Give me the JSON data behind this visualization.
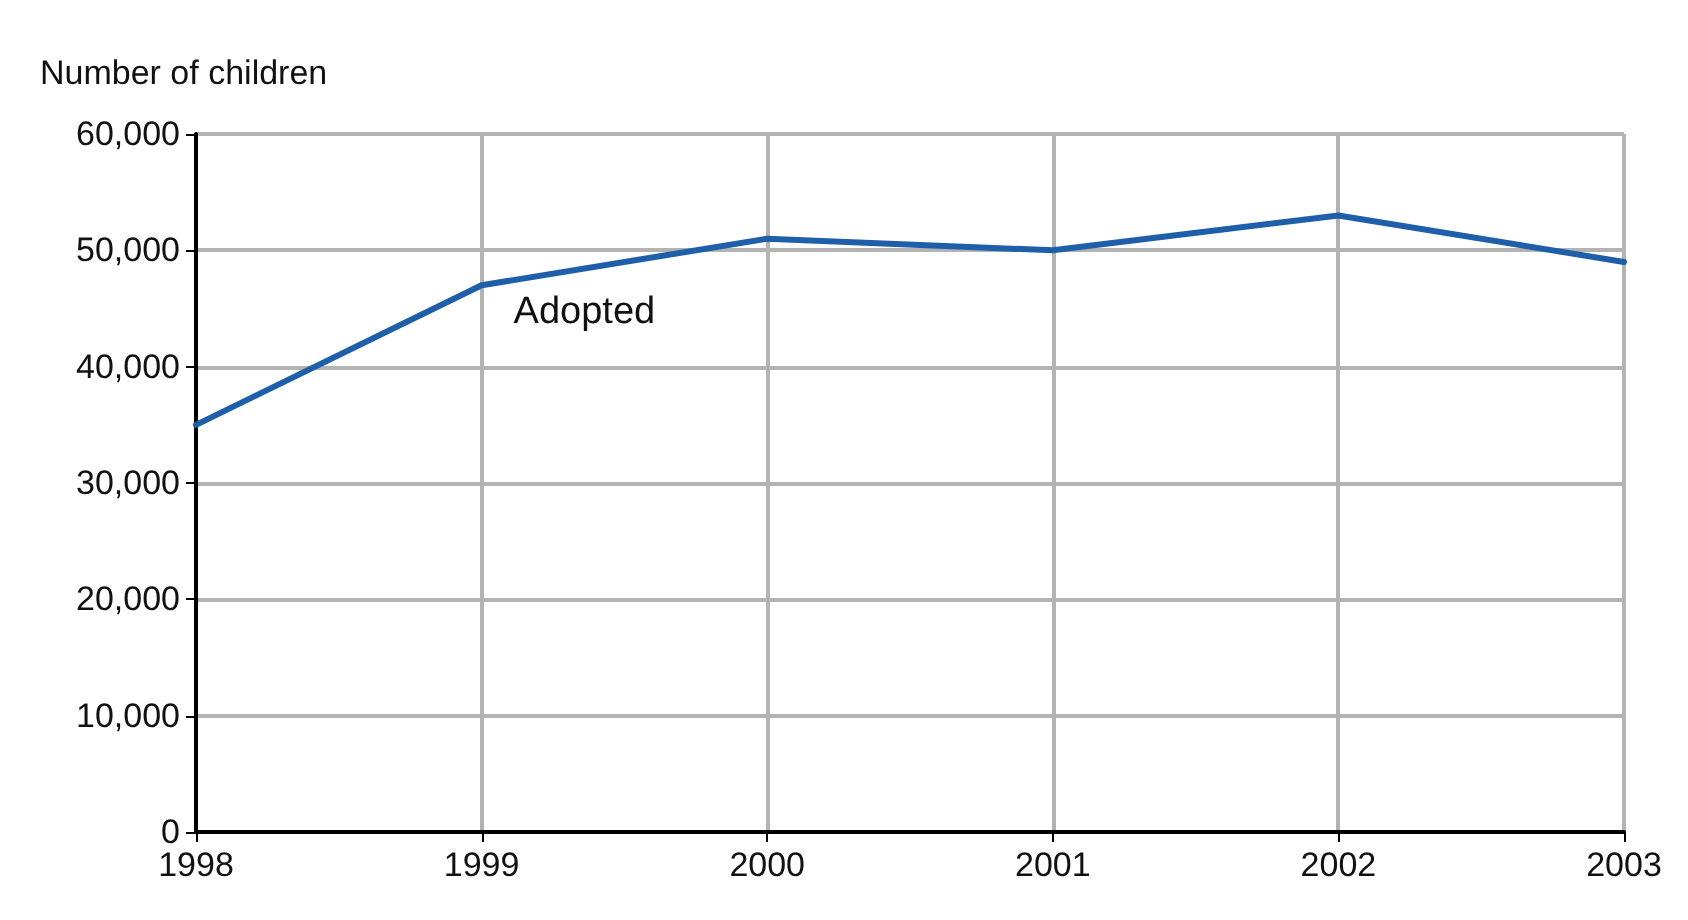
{
  "chart_data": {
    "type": "line",
    "ylabel": "Number of children",
    "x": [
      1998,
      1999,
      2000,
      2001,
      2002,
      2003
    ],
    "series": [
      {
        "name": "Adopted",
        "color": "#1f5ea8",
        "values": [
          35000,
          47000,
          51000,
          50000,
          53000,
          49000
        ]
      }
    ],
    "xlim": [
      1998,
      2003
    ],
    "xticks": [
      1998,
      1999,
      2000,
      2001,
      2002,
      2003
    ],
    "ylim": [
      0,
      60000
    ],
    "yticks": [
      {
        "value": 0,
        "label": "0"
      },
      {
        "value": 10000,
        "label": "10,000"
      },
      {
        "value": 20000,
        "label": "20,000"
      },
      {
        "value": 30000,
        "label": "30,000"
      },
      {
        "value": 40000,
        "label": "40,000"
      },
      {
        "value": 50000,
        "label": "50,000"
      },
      {
        "value": 60000,
        "label": "60,000"
      }
    ],
    "grid": true,
    "legend": false,
    "marker": "none",
    "line_style": "solid"
  }
}
